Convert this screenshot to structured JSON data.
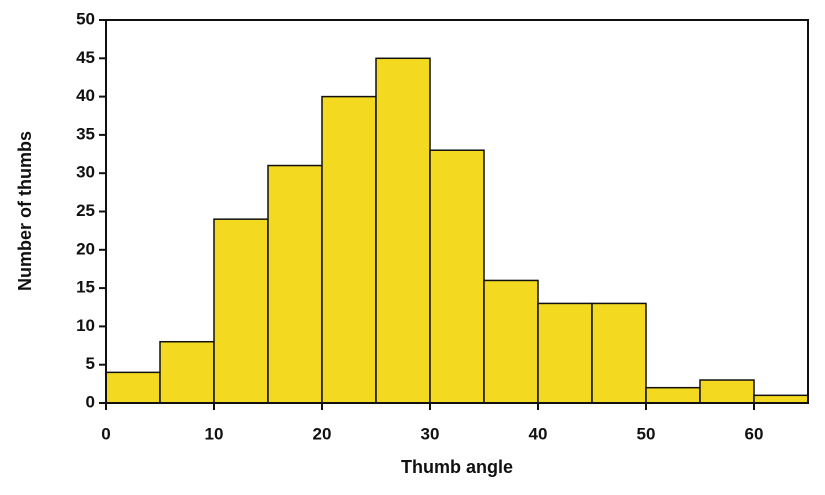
{
  "chart_data": {
    "type": "histogram",
    "x_label": "Thumb angle",
    "y_label": "Number of thumbs",
    "bins": [
      0,
      5,
      10,
      15,
      20,
      25,
      30,
      35,
      40,
      45,
      50,
      55,
      60,
      65
    ],
    "values": [
      4,
      8,
      24,
      31,
      40,
      45,
      33,
      16,
      13,
      13,
      2,
      3,
      1
    ],
    "color": "#f3d91f",
    "xlim": [
      0,
      65
    ],
    "xticks": [
      0,
      10,
      20,
      30,
      40,
      50,
      60
    ],
    "ylim": [
      0,
      50
    ],
    "yticks": [
      0,
      5,
      10,
      15,
      20,
      25,
      30,
      35,
      40,
      45,
      50
    ]
  }
}
